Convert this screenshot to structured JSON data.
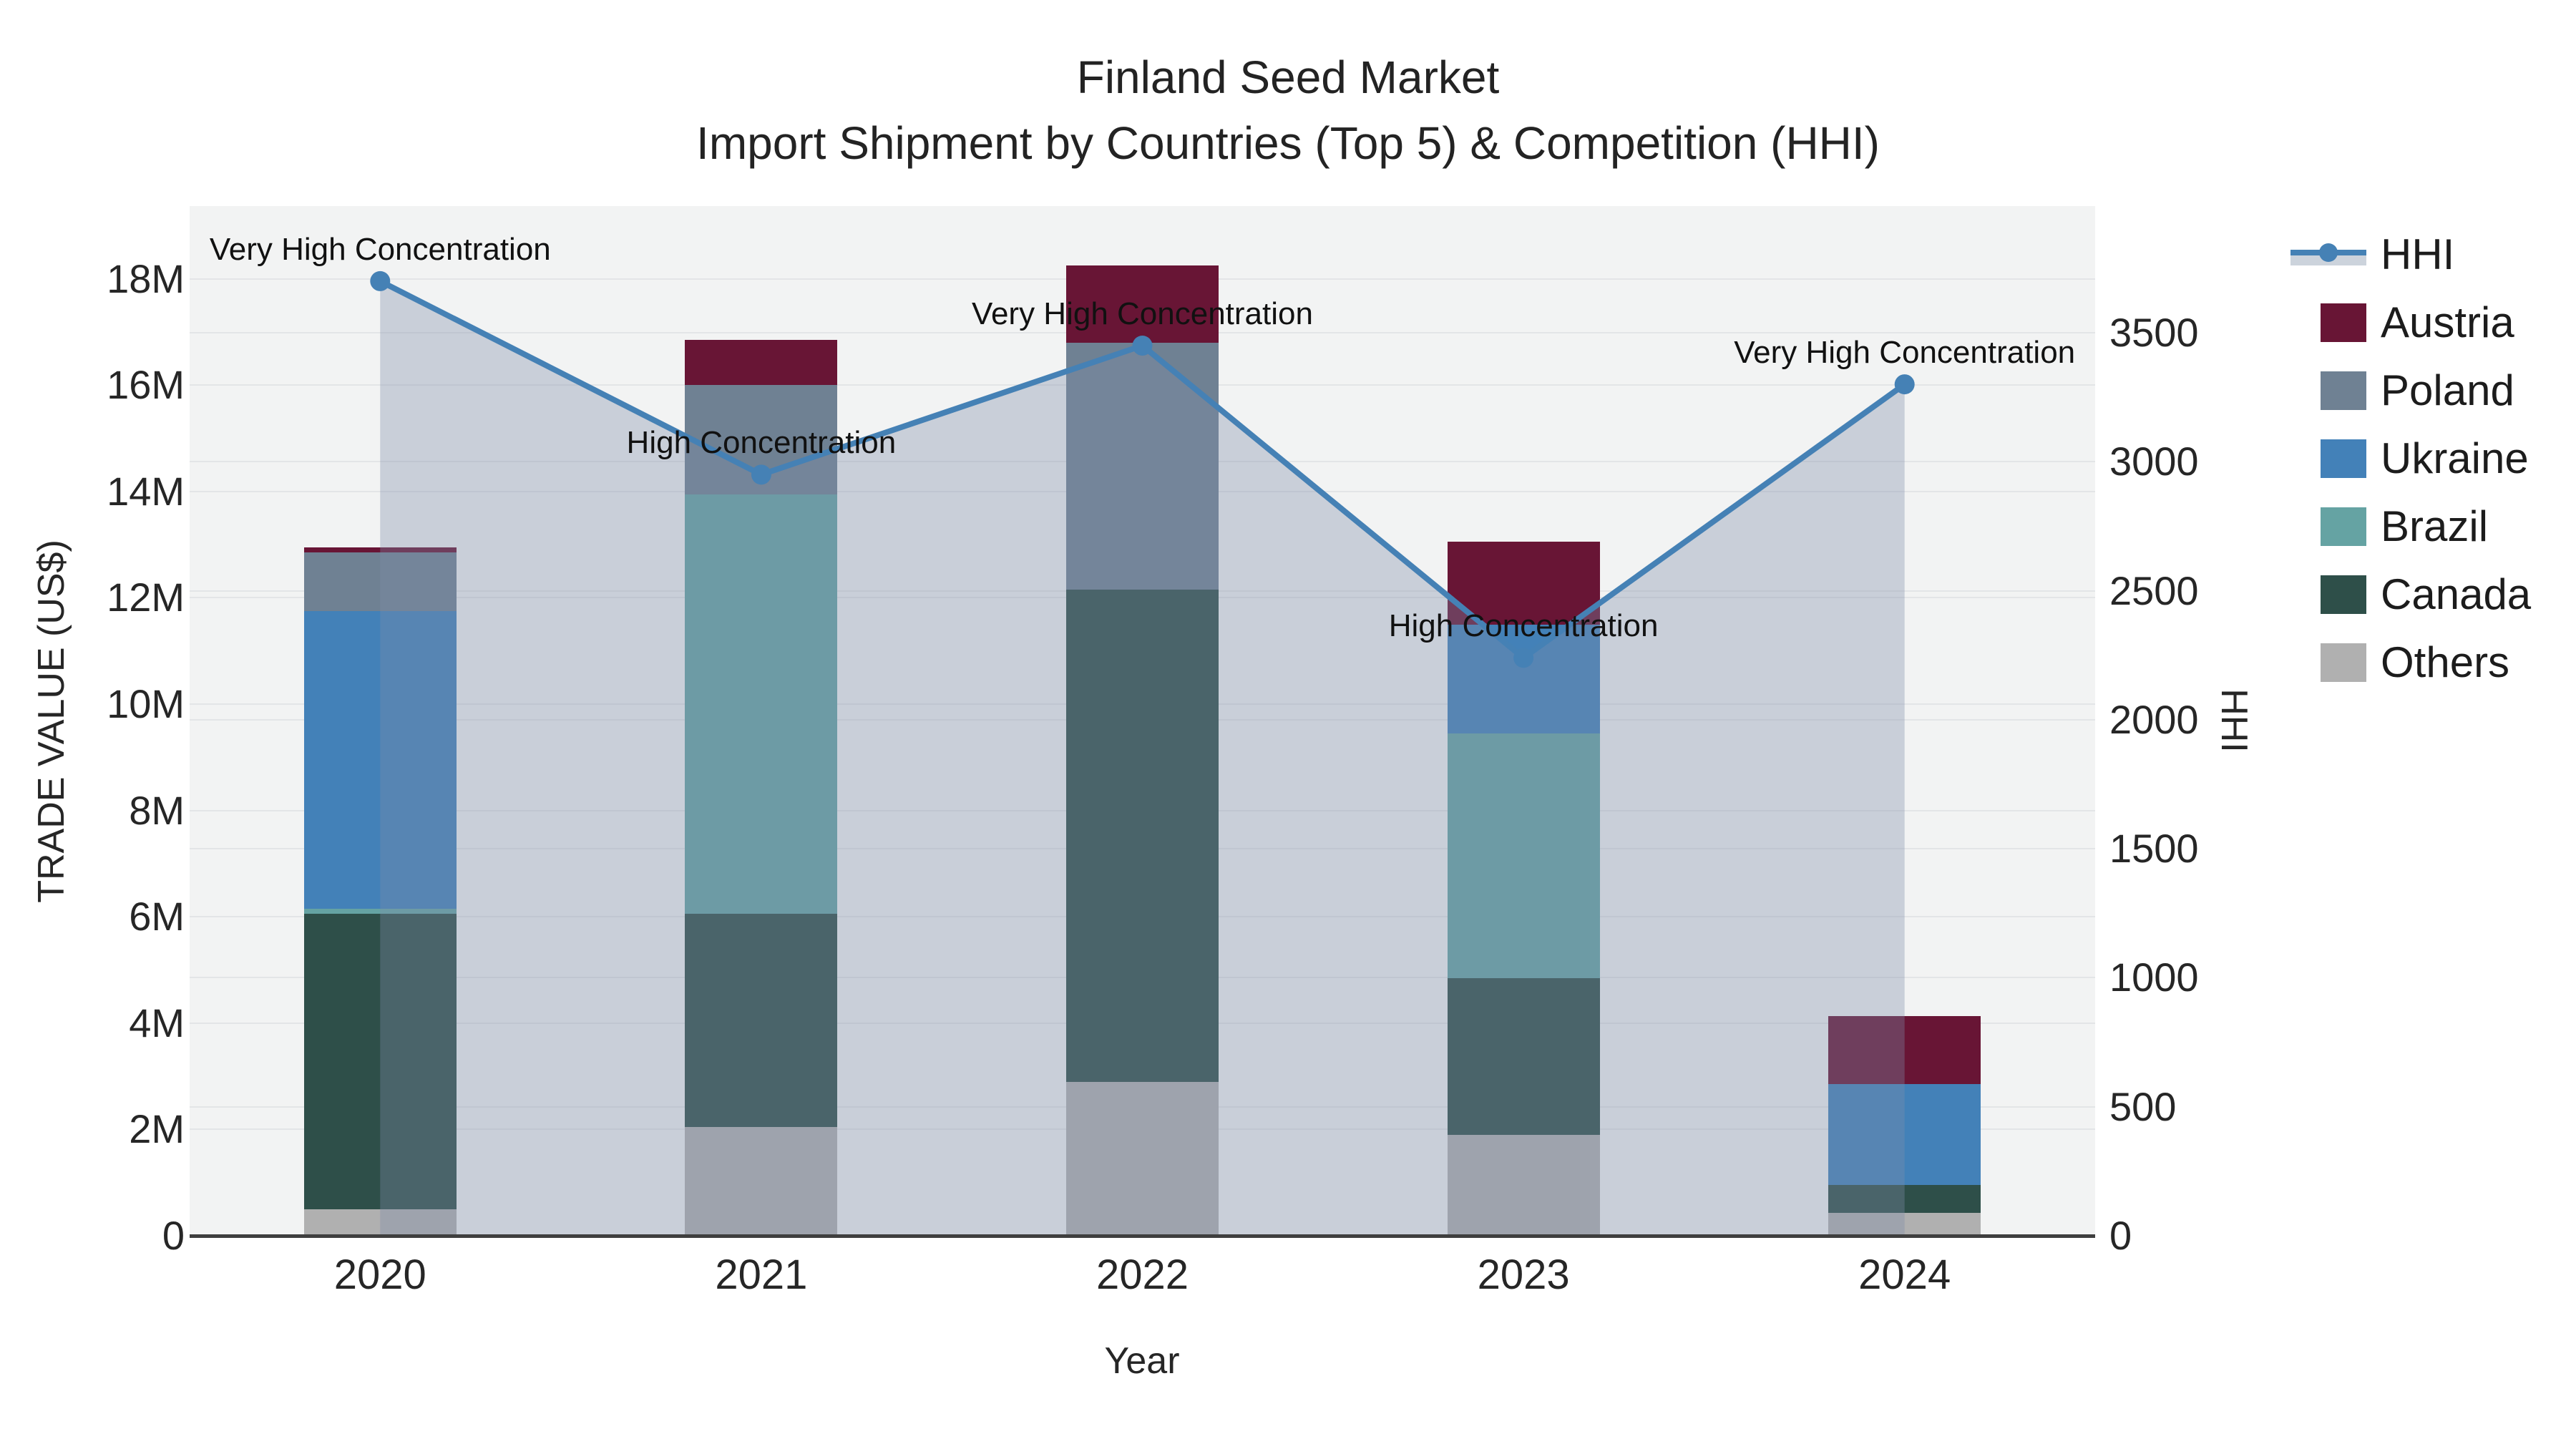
{
  "title": {
    "line1": "Finland Seed Market",
    "line2": "Import Shipment by Countries (Top 5) & Competition (HHI)"
  },
  "chart_data": {
    "type": "bar+line",
    "title": "Finland Seed Market Import Shipment by Countries (Top 5) & Competition (HHI)",
    "categories": [
      "2020",
      "2021",
      "2022",
      "2023",
      "2024"
    ],
    "stack_order_note": "series listed bottom-to-top; values in millions US$",
    "series": [
      {
        "name": "Others",
        "color": "#b0b0b0",
        "values": [
          0.5,
          2.05,
          2.9,
          1.9,
          0.43
        ]
      },
      {
        "name": "Canada",
        "color": "#2e4f49",
        "values": [
          5.55,
          4.0,
          9.25,
          2.95,
          0.53
        ]
      },
      {
        "name": "Brazil",
        "color": "#65a3a3",
        "values": [
          0.1,
          7.9,
          0,
          4.6,
          0
        ]
      },
      {
        "name": "Ukraine",
        "color": "#4381b8",
        "values": [
          5.6,
          0,
          0,
          2.05,
          1.89
        ]
      },
      {
        "name": "Poland",
        "color": "#6f8193",
        "values": [
          1.1,
          2.05,
          4.65,
          0,
          0
        ]
      },
      {
        "name": "Austria",
        "color": "#681535",
        "values": [
          0.1,
          0.85,
          1.45,
          1.55,
          1.28
        ]
      }
    ],
    "line_series": {
      "name": "HHI",
      "color": "#4581b5",
      "fill_color": "rgba(125,140,170,0.35)",
      "values": [
        3700,
        2950,
        3450,
        2240,
        3300
      ]
    },
    "annotations": [
      {
        "x_index": 0,
        "text": "Very High Concentration"
      },
      {
        "x_index": 1,
        "text": "High Concentration"
      },
      {
        "x_index": 2,
        "text": "Very High Concentration"
      },
      {
        "x_index": 3,
        "text": "High Concentration"
      },
      {
        "x_index": 4,
        "text": "Very High Concentration"
      }
    ],
    "left_axis": {
      "title": "TRADE VALUE (US$)",
      "tick_labels": [
        "0",
        "2M",
        "4M",
        "6M",
        "8M",
        "10M",
        "12M",
        "14M",
        "16M",
        "18M"
      ],
      "tick_values": [
        0,
        2,
        4,
        6,
        8,
        10,
        12,
        14,
        16,
        18
      ],
      "max_value": 19.35
    },
    "right_axis": {
      "title": "HHI",
      "tick_labels": [
        "0",
        "500",
        "1000",
        "1500",
        "2000",
        "2500",
        "3000",
        "3500"
      ],
      "tick_values": [
        0,
        500,
        1000,
        1500,
        2000,
        2500,
        3000,
        3500
      ],
      "max_value": 3990
    },
    "x_axis": {
      "title": "Year"
    },
    "grid": true,
    "legend_position": "right"
  },
  "legend": {
    "hhi_label": "HHI",
    "hhi_band_color": "#ccd3dc",
    "items_top_to_bottom": [
      "HHI",
      "Austria",
      "Poland",
      "Ukraine",
      "Brazil",
      "Canada",
      "Others"
    ]
  },
  "colors": {
    "plot_bg": "#f2f3f3",
    "gridline": "#e3e5e7",
    "axis_line": "#3f3f3f",
    "text": "#242424"
  }
}
